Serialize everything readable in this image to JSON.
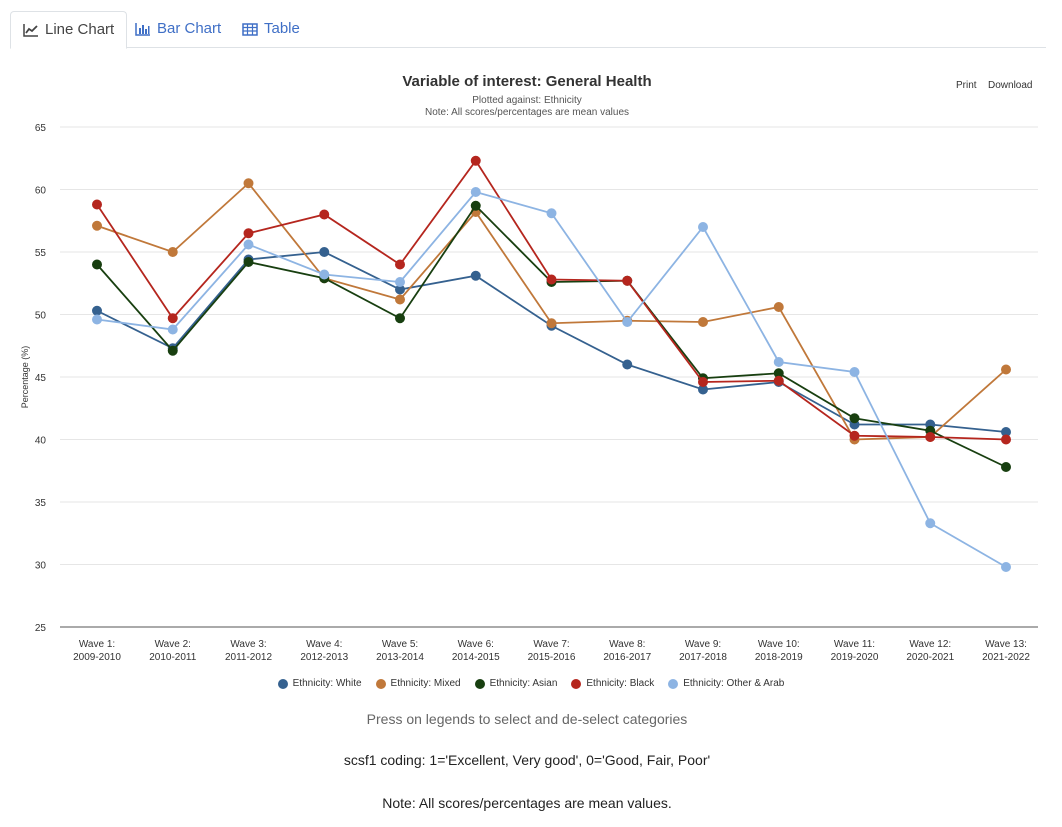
{
  "tabs": [
    {
      "label": "Line Chart",
      "icon": "line-chart-icon"
    },
    {
      "label": "Bar Chart",
      "icon": "bar-chart-icon"
    },
    {
      "label": "Table",
      "icon": "table-icon"
    }
  ],
  "menu": {
    "print": "Print",
    "download": "Download"
  },
  "hint": "Press on legends to select and de-select categories",
  "coding": "scsf1 coding: 1='Excellent, Very good', 0='Good, Fair, Poor'",
  "note": "Note: All scores/percentages are mean values.",
  "chart_data": {
    "type": "line",
    "title": "Variable of interest: General Health",
    "subtitle": "Plotted against: Ethnicity",
    "subtitle2": "Note: All scores/percentages are mean values",
    "ylabel": "Percentage (%)",
    "ylim": [
      25,
      65
    ],
    "yticks": [
      65,
      60,
      55,
      50,
      45,
      40,
      35,
      30,
      25
    ],
    "grid": true,
    "legend": "bottom",
    "categories": [
      [
        "Wave 1:",
        "2009-2010"
      ],
      [
        "Wave 2:",
        "2010-2011"
      ],
      [
        "Wave 3:",
        "2011-2012"
      ],
      [
        "Wave 4:",
        "2012-2013"
      ],
      [
        "Wave 5:",
        "2013-2014"
      ],
      [
        "Wave 6:",
        "2014-2015"
      ],
      [
        "Wave 7:",
        "2015-2016"
      ],
      [
        "Wave 8:",
        "2016-2017"
      ],
      [
        "Wave 9:",
        "2017-2018"
      ],
      [
        "Wave 10:",
        "2018-2019"
      ],
      [
        "Wave 11:",
        "2019-2020"
      ],
      [
        "Wave 12:",
        "2020-2021"
      ],
      [
        "Wave 13:",
        "2021-2022"
      ]
    ],
    "series": [
      {
        "name": "Ethnicity: White",
        "color": "#35618f",
        "values": [
          50.3,
          47.3,
          54.4,
          55.0,
          52.0,
          53.1,
          49.1,
          46.0,
          44.0,
          44.6,
          41.2,
          41.2,
          40.6
        ]
      },
      {
        "name": "Ethnicity: Mixed",
        "color": "#c0783a",
        "values": [
          57.1,
          55.0,
          60.5,
          52.9,
          51.2,
          58.2,
          49.3,
          49.5,
          49.4,
          50.6,
          40.0,
          40.2,
          45.6
        ]
      },
      {
        "name": "Ethnicity: Asian",
        "color": "#183f10",
        "values": [
          54.0,
          47.1,
          54.2,
          52.9,
          49.7,
          58.7,
          52.6,
          52.7,
          44.9,
          45.3,
          41.7,
          40.7,
          37.8
        ]
      },
      {
        "name": "Ethnicity: Black",
        "color": "#b5261e",
        "values": [
          58.8,
          49.7,
          56.5,
          58.0,
          54.0,
          62.3,
          52.8,
          52.7,
          44.6,
          44.7,
          40.3,
          40.2,
          40.0
        ]
      },
      {
        "name": "Ethnicity: Other & Arab",
        "color": "#8db4e3",
        "values": [
          49.6,
          48.8,
          55.6,
          53.2,
          52.6,
          59.8,
          58.1,
          49.4,
          57.0,
          46.2,
          45.4,
          33.3,
          29.8
        ]
      }
    ]
  }
}
